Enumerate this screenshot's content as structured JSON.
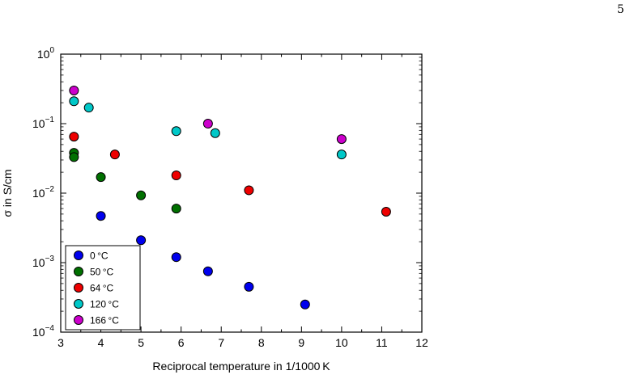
{
  "page_number": "5",
  "chart_data": {
    "type": "scatter",
    "title": "",
    "xlabel": "Reciprocal temperature in 1/1000 K",
    "ylabel": "σ in S/cm",
    "xlim": [
      3,
      12
    ],
    "ylim": [
      0.0001,
      1
    ],
    "yscale": "log",
    "x_ticks": [
      "3",
      "4",
      "5",
      "6",
      "7",
      "8",
      "9",
      "10",
      "11",
      "12"
    ],
    "y_ticks": [
      {
        "base": "10",
        "exp": "0"
      },
      {
        "base": "10",
        "exp": "−1"
      },
      {
        "base": "10",
        "exp": "−2"
      },
      {
        "base": "10",
        "exp": "−3"
      },
      {
        "base": "10",
        "exp": "−4"
      }
    ],
    "grid": false,
    "legend_position": "bottom-left",
    "series": [
      {
        "name": "0 °C",
        "color": "#0000ee",
        "points": [
          [
            4.0,
            0.0047
          ],
          [
            5.0,
            0.0021
          ],
          [
            5.88,
            0.0012
          ],
          [
            6.67,
            0.00075
          ],
          [
            7.69,
            0.00045
          ],
          [
            9.09,
            0.00025
          ]
        ]
      },
      {
        "name": "50 °C",
        "color": "#007000",
        "points": [
          [
            3.33,
            0.038
          ],
          [
            3.33,
            0.033
          ],
          [
            4.0,
            0.017
          ],
          [
            5.0,
            0.0093
          ],
          [
            5.88,
            0.006
          ]
        ]
      },
      {
        "name": "64 °C",
        "color": "#ee0000",
        "points": [
          [
            3.33,
            0.065
          ],
          [
            4.35,
            0.036
          ],
          [
            5.88,
            0.018
          ],
          [
            7.69,
            0.011
          ],
          [
            11.11,
            0.0054
          ]
        ]
      },
      {
        "name": "120 °C",
        "color": "#00c8c8",
        "points": [
          [
            3.33,
            0.21
          ],
          [
            3.7,
            0.17
          ],
          [
            5.88,
            0.078
          ],
          [
            6.85,
            0.073
          ],
          [
            10.0,
            0.036
          ]
        ]
      },
      {
        "name": "166 °C",
        "color": "#cc00cc",
        "points": [
          [
            3.33,
            0.3
          ],
          [
            6.67,
            0.1
          ],
          [
            10.0,
            0.06
          ]
        ]
      }
    ]
  }
}
